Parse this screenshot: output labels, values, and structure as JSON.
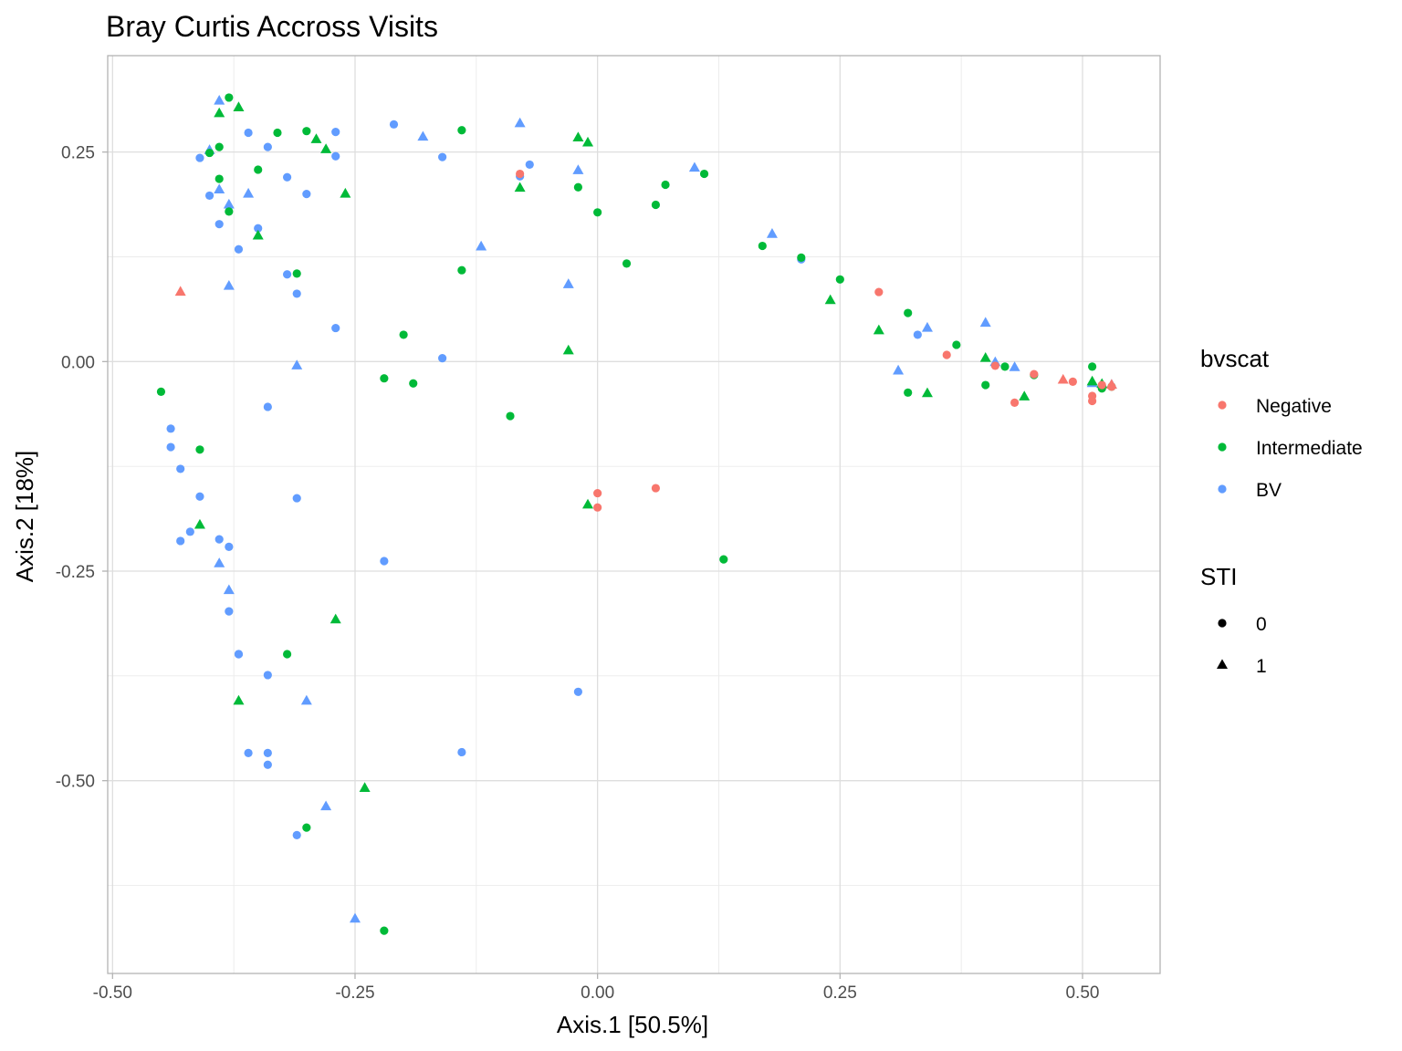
{
  "chart_data": {
    "type": "scatter",
    "title": "Bray Curtis Accross Visits",
    "xlabel": "Axis.1   [50.5%]",
    "ylabel": "Axis.2   [18%]",
    "xlim": [
      -0.505,
      0.58
    ],
    "ylim": [
      -0.73,
      0.365
    ],
    "xticks": [
      -0.5,
      -0.25,
      0.0,
      0.25,
      0.5
    ],
    "xtick_labels": [
      "-0.50",
      "-0.25",
      "0.00",
      "0.25",
      "0.50"
    ],
    "yticks": [
      0.25,
      0.0,
      -0.25,
      -0.5
    ],
    "ytick_labels": [
      "0.25",
      "0.00",
      "-0.25",
      "-0.50"
    ],
    "grid": true,
    "legend_position": "right",
    "color_legend": {
      "title": "bvscat",
      "entries": [
        {
          "label": "Negative",
          "color": "#f8766d"
        },
        {
          "label": "Intermediate",
          "color": "#00ba38"
        },
        {
          "label": "BV",
          "color": "#619cff"
        }
      ]
    },
    "shape_legend": {
      "title": "STI",
      "entries": [
        {
          "label": "0",
          "shape": "circle"
        },
        {
          "label": "1",
          "shape": "triangle"
        }
      ]
    },
    "series": [
      {
        "category": "BV",
        "sti": "0",
        "x": [
          -0.41,
          -0.36,
          -0.34,
          -0.27,
          -0.21,
          -0.16,
          -0.4,
          -0.32,
          -0.3,
          -0.27,
          -0.39,
          -0.37,
          -0.35,
          -0.32,
          -0.27,
          -0.16,
          -0.08,
          -0.07,
          0.21,
          0.33,
          -0.44,
          -0.44,
          -0.43,
          -0.41,
          -0.42,
          -0.43,
          -0.38,
          -0.38,
          -0.39,
          -0.37,
          -0.34,
          -0.34,
          -0.31,
          -0.22,
          -0.37,
          -0.36,
          -0.34,
          -0.34,
          -0.31,
          -0.14,
          -0.02,
          -0.31
        ],
        "y": [
          0.243,
          0.273,
          0.256,
          0.245,
          0.283,
          0.244,
          0.198,
          0.22,
          0.2,
          0.274,
          0.164,
          0.134,
          0.159,
          0.104,
          0.04,
          0.004,
          0.221,
          0.235,
          0.122,
          0.032,
          -0.08,
          -0.102,
          -0.128,
          -0.161,
          -0.203,
          -0.214,
          -0.221,
          -0.298,
          -0.212,
          -0.349,
          -0.374,
          -0.054,
          -0.163,
          -0.238,
          -0.349,
          -0.467,
          -0.481,
          -0.467,
          -0.565,
          -0.466,
          -0.394,
          0.081
        ]
      },
      {
        "category": "BV",
        "sti": "1",
        "x": [
          -0.39,
          -0.4,
          -0.39,
          -0.36,
          -0.38,
          -0.31,
          -0.18,
          -0.08,
          -0.12,
          -0.02,
          -0.03,
          0.1,
          0.18,
          0.31,
          0.34,
          0.4,
          0.41,
          0.43,
          0.51,
          0.53,
          -0.39,
          -0.38,
          -0.3,
          -0.28,
          -0.25,
          -0.38
        ],
        "y": [
          0.311,
          0.252,
          0.205,
          0.2,
          0.187,
          -0.005,
          0.268,
          0.284,
          0.137,
          0.228,
          0.092,
          0.231,
          0.152,
          -0.011,
          0.04,
          0.046,
          -0.001,
          -0.007,
          -0.026,
          -0.028,
          -0.241,
          -0.273,
          -0.405,
          -0.531,
          -0.665,
          0.09
        ]
      },
      {
        "category": "Intermediate",
        "sti": "0",
        "x": [
          -0.38,
          -0.4,
          -0.39,
          -0.33,
          -0.35,
          -0.39,
          -0.38,
          -0.3,
          -0.14,
          0.0,
          0.07,
          0.11,
          -0.02,
          -0.14,
          0.03,
          -0.2,
          -0.22,
          -0.19,
          -0.09,
          -0.45,
          -0.41,
          -0.32,
          -0.3,
          -0.22,
          0.06,
          0.13,
          0.17,
          0.21,
          0.25,
          0.32,
          0.32,
          0.37,
          0.4,
          0.42,
          0.45,
          0.51,
          0.52,
          0.53,
          -0.31
        ],
        "y": [
          0.315,
          0.249,
          0.256,
          0.273,
          0.229,
          0.218,
          0.179,
          0.275,
          0.276,
          0.178,
          0.211,
          0.224,
          0.208,
          0.109,
          0.117,
          0.032,
          -0.02,
          -0.026,
          -0.065,
          -0.036,
          -0.105,
          -0.349,
          -0.556,
          -0.679,
          0.187,
          -0.236,
          0.138,
          0.124,
          0.098,
          0.058,
          -0.037,
          0.02,
          -0.028,
          -0.006,
          -0.016,
          -0.006,
          -0.032,
          -0.03,
          0.105
        ]
      },
      {
        "category": "Intermediate",
        "sti": "1",
        "x": [
          -0.39,
          -0.37,
          -0.29,
          -0.28,
          -0.26,
          -0.35,
          -0.08,
          -0.02,
          -0.01,
          -0.03,
          -0.01,
          0.24,
          0.29,
          0.34,
          0.4,
          0.44,
          0.51,
          0.52,
          -0.41,
          -0.37,
          -0.27,
          -0.24
        ],
        "y": [
          0.296,
          0.303,
          0.265,
          0.253,
          0.2,
          0.15,
          0.207,
          0.267,
          0.261,
          0.013,
          -0.171,
          0.073,
          0.037,
          -0.038,
          0.004,
          -0.042,
          -0.024,
          -0.027,
          -0.195,
          -0.405,
          -0.308,
          -0.509
        ]
      },
      {
        "category": "Negative",
        "sti": "0",
        "x": [
          -0.08,
          0.0,
          0.0,
          0.06,
          0.29,
          0.36,
          0.41,
          0.43,
          0.45,
          0.49,
          0.51,
          0.51,
          0.52,
          0.53
        ],
        "y": [
          0.224,
          -0.157,
          -0.174,
          -0.151,
          0.083,
          0.008,
          -0.005,
          -0.049,
          -0.015,
          -0.024,
          -0.041,
          -0.047,
          -0.028,
          -0.03
        ]
      },
      {
        "category": "Negative",
        "sti": "1",
        "x": [
          -0.43,
          0.48,
          0.53
        ],
        "y": [
          0.083,
          -0.022,
          -0.028
        ]
      }
    ]
  }
}
